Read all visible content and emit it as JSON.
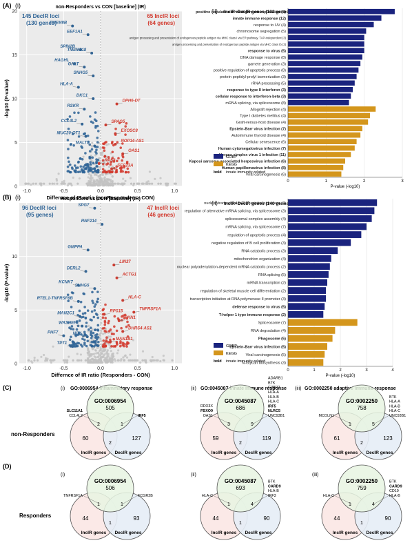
{
  "colors": {
    "down": "#2f6496",
    "up": "#d23a2e",
    "gobp": "#1a237e",
    "kegg": "#d4961c",
    "grey": "#c2c2c2",
    "green": "#e8f5e2",
    "pink": "#fbe7e4",
    "blue": "#e6edf6"
  },
  "panelA": {
    "label": "(A)",
    "volcano": {
      "sub": "(i)",
      "title": "non-Responders vs CON [baseline] (IR)",
      "xlabel": "Differnce of IR ratio (nonResponders - CON)",
      "ylabel": "-log10 (P-value)",
      "left_count": "145 DecIR loci",
      "left_genes": "(130 genes)",
      "right_count": "65 IncIR loci",
      "right_genes": "(64 genes)"
    },
    "bars": {
      "sub": "(ii)",
      "title": "IncIR+DecIR genes (192 genes, non-Responders)",
      "xlabel": "P-value (-log10)",
      "legend": [
        "GOBP",
        "KEGG"
      ],
      "bold_label": "bold",
      "bold_desc": "innate immunity-related"
    }
  },
  "panelB": {
    "label": "(B)",
    "volcano": {
      "sub": "(i)",
      "title": "Responders vs CON [baseline] (IR)",
      "xlabel": "Differnce of IR ratio (Responders - CON)",
      "ylabel": "-log10 (P-value)",
      "left_count": "96 DecIR loci",
      "left_genes": "(95 genes)",
      "right_count": "47 IncIR loci",
      "right_genes": "(46 genes)"
    },
    "bars": {
      "sub": "(ii)",
      "title": "IncIR+DecIR genes (140 genes, Responders)",
      "xlabel": "P-value (-log10)",
      "legend": [
        "GOBP",
        "KEGG"
      ],
      "bold_label": "bold",
      "bold_desc": "innate immunity-related"
    }
  },
  "panelC": {
    "label": "(C)",
    "row": "non-Responders",
    "venns": [
      {
        "sub": "(i)",
        "title": "GO:0006954 inflammatory response",
        "go": "GO:0006954",
        "top": "505",
        "left": "60",
        "right": "127",
        "tl": "2",
        "tr": "1",
        "bottom": "2",
        "center": "",
        "leftGenes": [
          "SLC11A1",
          "CCL4L2"
        ],
        "leftBold": [
          true,
          false
        ],
        "rightGenes": [
          "IRF5"
        ],
        "rightBold": [
          true
        ],
        "lab1": "IncIR genes",
        "lab2": "DecIR genes"
      },
      {
        "sub": "(ii)",
        "title": "GO:0045087 innate immune response",
        "go": "GO:0045087",
        "top": "686",
        "left": "59",
        "right": "119",
        "tl": "3",
        "tr": "9",
        "bottom": "2",
        "center": "",
        "leftGenes": [
          "DDX3X",
          "FBXO9",
          "OAS1"
        ],
        "leftBold": [
          false,
          true,
          false
        ],
        "rightGenes": [
          "ADARB1",
          "BTK",
          "G3BP2",
          "HLA-A",
          "HLA-B",
          "HLA-C",
          "IRF5",
          "NLRC5",
          "UNC93B1"
        ],
        "rightBold": [
          false,
          false,
          false,
          false,
          false,
          false,
          true,
          true,
          false
        ],
        "lab1": "IncIR genes",
        "lab2": "DecIR genes"
      },
      {
        "sub": "(iii)",
        "title": "GO:0002250 adaptive immune response",
        "go": "GO:0002250",
        "top": "758",
        "left": "61",
        "right": "123",
        "tl": "1",
        "tr": "5",
        "bottom": "2",
        "center": "",
        "leftGenes": [
          "MCOLN1"
        ],
        "leftBold": [
          false
        ],
        "rightGenes": [
          "BTK",
          "HLA-A",
          "HLA-B",
          "HLA-C",
          "UNC93B1"
        ],
        "rightBold": [
          false,
          false,
          false,
          false,
          false
        ],
        "lab1": "IncIR genes",
        "lab2": "DecIR genes"
      }
    ]
  },
  "panelD": {
    "label": "(D)",
    "row": "Responders",
    "venns": [
      {
        "sub": "(i)",
        "title": "",
        "go": "GO:0006954",
        "top": "506",
        "left": "44",
        "right": "93",
        "tl": "1",
        "tr": "1",
        "bottom": "1",
        "center": "",
        "leftGenes": [
          "TNFRSF1A"
        ],
        "leftBold": [
          false
        ],
        "rightGenes": [
          "FCGR2B"
        ],
        "rightBold": [
          false
        ],
        "lab1": "IncIR genes",
        "lab2": "DecIR genes"
      },
      {
        "sub": "(ii)",
        "title": "",
        "go": "GO:0045087",
        "top": "693",
        "left": "44",
        "right": "90",
        "tl": "1",
        "tr": "4",
        "bottom": "1",
        "center": "",
        "leftGenes": [
          "HLA-C"
        ],
        "leftBold": [
          false
        ],
        "rightGenes": [
          "BTK",
          "CARD9",
          "HLA-B",
          "IRF3"
        ],
        "rightBold": [
          false,
          true,
          false,
          false
        ],
        "lab1": "IncIR genes",
        "lab2": "DecIR genes"
      },
      {
        "sub": "(iii)",
        "title": "",
        "go": "GO:0002250",
        "top": "759",
        "left": "44",
        "right": "90",
        "tl": "1",
        "tr": "4",
        "bottom": "1",
        "center": "",
        "leftGenes": [
          "HLA-C"
        ],
        "leftBold": [
          false
        ],
        "rightGenes": [
          "BTK",
          "CARD9",
          "CD19",
          "HLA-B"
        ],
        "rightBold": [
          false,
          true,
          false,
          false
        ],
        "lab1": "IncIR genes",
        "lab2": "DecIR genes"
      }
    ]
  },
  "chart_data": [
    {
      "type": "scatter",
      "name": "A(i)",
      "xlim": [
        -1.1,
        1.1
      ],
      "ylim": [
        0,
        20
      ],
      "xticks": [
        "-1.0",
        "-0.5",
        "0.0",
        "0.5",
        "1.0"
      ],
      "yticks": [
        "0",
        "5",
        "10",
        "15",
        "20"
      ],
      "labeled_points": [
        {
          "label": "TMEM8B",
          "x": -0.38,
          "y": 18.3,
          "dir": "down"
        },
        {
          "label": "EEF1A1",
          "x": -0.17,
          "y": 17.3,
          "dir": "down"
        },
        {
          "label": "SPIN2B",
          "x": -0.27,
          "y": 15.6,
          "dir": "down"
        },
        {
          "label": "TMEM218",
          "x": -0.12,
          "y": 15.2,
          "dir": "down"
        },
        {
          "label": "GALT",
          "x": -0.22,
          "y": 13.6,
          "dir": "down"
        },
        {
          "label": "HAGHL",
          "x": -0.35,
          "y": 14.0,
          "dir": "down"
        },
        {
          "label": "SNHG5",
          "x": -0.1,
          "y": 12.6,
          "dir": "down"
        },
        {
          "label": "HLA-A",
          "x": -0.3,
          "y": 11.3,
          "dir": "down"
        },
        {
          "label": "DKC1",
          "x": -0.1,
          "y": 10.0,
          "dir": "down"
        },
        {
          "label": "RSKR",
          "x": -0.22,
          "y": 8.8,
          "dir": "down"
        },
        {
          "label": "CCL4L2",
          "x": -0.25,
          "y": 7.1,
          "dir": "down"
        },
        {
          "label": "MUC20-OT1",
          "x": -0.2,
          "y": 5.7,
          "dir": "down"
        },
        {
          "label": "MALT1",
          "x": -0.08,
          "y": 4.6,
          "dir": "down"
        },
        {
          "label": "DPH6-DT",
          "x": 0.22,
          "y": 9.4,
          "dir": "up"
        },
        {
          "label": "SPAG5",
          "x": 0.07,
          "y": 7.0,
          "dir": "up"
        },
        {
          "label": "EXOSC8",
          "x": 0.2,
          "y": 6.0,
          "dir": "up"
        },
        {
          "label": "NOP14-AS1",
          "x": 0.2,
          "y": 4.8,
          "dir": "up"
        },
        {
          "label": "OAS1",
          "x": 0.3,
          "y": 3.7,
          "dir": "up"
        },
        {
          "label": "RPS8",
          "x": -0.02,
          "y": 2.6,
          "dir": "up"
        },
        {
          "label": "SEC23A",
          "x": 0.15,
          "y": 2.0,
          "dir": "up"
        }
      ]
    },
    {
      "type": "bar",
      "name": "A(ii)",
      "xlim": [
        0,
        3
      ],
      "xticks": [
        "0",
        "1",
        "2",
        "3"
      ],
      "categories": [
        "positive regulation of viral genome replication (4)",
        "innate immune response (12)",
        "response to UV (4)",
        "chromosome segregation (5)",
        "antigen processing and presentation of endogenous peptide antigen via MHC class I via ER pathway, TAP-independent (3)",
        "antigen processing and presentation of endogenous peptide antigen via MHC class Ib (3)",
        "response to virus (5)",
        "DNA damage response (8)",
        "gamete generation (3)",
        "positive regulation of apoptotic process (8)",
        "protein peptidyl-prolyl isomerization (3)",
        "rRNA processing (5)",
        "response to type II interferon (3)",
        "cellular response to interferon-beta (3)",
        "mRNA splicing, via spliceosome (8)",
        "Allograft rejection (4)",
        "Type I diabetes mellitus (4)",
        "Graft-versus-host disease (4)",
        "Epstein-Barr virus infection (7)",
        "Autoimmune thyroid disease (4)",
        "Cellular senescence (6)",
        "Human cytomegalovirus infection (7)",
        "Herpes simplex virus 1 infection (11)",
        "Kaposi sarcoma-associated herpesvirus infection (6)",
        "Human papillomavirus infection (8)",
        "Viral carcinogenesis (6)"
      ],
      "values": [
        2.8,
        2.45,
        2.25,
        2.05,
        2.0,
        2.0,
        2.0,
        1.95,
        1.9,
        1.85,
        1.8,
        1.75,
        1.7,
        1.65,
        1.6,
        2.3,
        2.15,
        2.1,
        1.95,
        1.9,
        1.8,
        1.75,
        1.65,
        1.5,
        1.45,
        1.4
      ],
      "source": [
        "GOBP",
        "GOBP",
        "GOBP",
        "GOBP",
        "GOBP",
        "GOBP",
        "GOBP",
        "GOBP",
        "GOBP",
        "GOBP",
        "GOBP",
        "GOBP",
        "GOBP",
        "GOBP",
        "GOBP",
        "KEGG",
        "KEGG",
        "KEGG",
        "KEGG",
        "KEGG",
        "KEGG",
        "KEGG",
        "KEGG",
        "KEGG",
        "KEGG",
        "KEGG"
      ],
      "bold": [
        true,
        true,
        false,
        false,
        false,
        false,
        true,
        false,
        false,
        false,
        false,
        false,
        true,
        true,
        false,
        false,
        false,
        false,
        true,
        false,
        false,
        true,
        true,
        true,
        true,
        false
      ]
    },
    {
      "type": "scatter",
      "name": "B(i)",
      "xlim": [
        -1.1,
        1.1
      ],
      "ylim": [
        0,
        15
      ],
      "xticks": [
        "-1.0",
        "-0.5",
        "0.0",
        "0.5",
        "1.0"
      ],
      "yticks": [
        "0",
        "5",
        "10"
      ],
      "labeled_points": [
        {
          "label": "SPG7",
          "x": -0.08,
          "y": 14.5,
          "dir": "down"
        },
        {
          "label": "RNF214",
          "x": 0.02,
          "y": 13.0,
          "dir": "down"
        },
        {
          "label": "GMPPA",
          "x": -0.17,
          "y": 10.6,
          "dir": "down"
        },
        {
          "label": "DERL2",
          "x": -0.2,
          "y": 8.6,
          "dir": "down"
        },
        {
          "label": "KCNK7",
          "x": -0.3,
          "y": 7.3,
          "dir": "down"
        },
        {
          "label": "SNHG5",
          "x": -0.08,
          "y": 7.0,
          "dir": "down"
        },
        {
          "label": "RTEL1-TNFRSF6B",
          "x": -0.3,
          "y": 5.8,
          "dir": "down"
        },
        {
          "label": "MAN2C1",
          "x": -0.28,
          "y": 4.4,
          "dir": "down"
        },
        {
          "label": "WASHEP",
          "x": -0.25,
          "y": 3.5,
          "dir": "down"
        },
        {
          "label": "PHF7",
          "x": -0.5,
          "y": 2.6,
          "dir": "down"
        },
        {
          "label": "NIT1",
          "x": -0.18,
          "y": 2.5,
          "dir": "down"
        },
        {
          "label": "TPT1",
          "x": -0.38,
          "y": 1.6,
          "dir": "down"
        },
        {
          "label": "LIN37",
          "x": 0.18,
          "y": 9.2,
          "dir": "up"
        },
        {
          "label": "ACTG1",
          "x": 0.22,
          "y": 8.0,
          "dir": "up"
        },
        {
          "label": "HLA-C",
          "x": 0.3,
          "y": 5.9,
          "dir": "up"
        },
        {
          "label": "RPS15",
          "x": 0.05,
          "y": 4.6,
          "dir": "up"
        },
        {
          "label": "TNFRSF1A",
          "x": 0.45,
          "y": 4.8,
          "dir": "up"
        },
        {
          "label": "PKN1",
          "x": 0.25,
          "y": 4.0,
          "dir": "up"
        },
        {
          "label": "DHRS4-AS1",
          "x": 0.3,
          "y": 3.0,
          "dir": "up"
        },
        {
          "label": "MAN1B1",
          "x": 0.13,
          "y": 2.0,
          "dir": "up"
        }
      ]
    },
    {
      "type": "bar",
      "name": "B(ii)",
      "xlim": [
        0,
        4
      ],
      "xticks": [
        "0",
        "1",
        "2",
        "3",
        "4"
      ],
      "categories": [
        "nuclear-transcribed mRNA catabolic process (4)",
        "regulation of alternative mRNA splicing, via spliceosome (3)",
        "spliceosomal complex assembly (4)",
        "mRNA splicing, via spliceosome (7)",
        "regulation of apoptotic process (4)",
        "negative regulation of B cell proliferation (3)",
        "RNA catabolic process (3)",
        "mitochondrion organization (4)",
        "nuclear polyadenylation-dependent mRNA catabolic process (2)",
        "RNA splicing (5)",
        "mRNA transcription (2)",
        "regulation of skeletal muscle cell differentiation (2)",
        "transcription initiation at RNA polymerase II promoter (3)",
        "defense response to virus (5)",
        "T-helper 1 type immune response (2)",
        "Spliceosome (7)",
        "RNA degradation (4)",
        "Phagosome (5)",
        "Epstein-Barr virus infection (5)",
        "Viral carcinogenesis (5)",
        "N-Glycan biosynthesis (3)"
      ],
      "values": [
        3.4,
        3.3,
        3.2,
        3.0,
        2.8,
        2.4,
        1.9,
        1.65,
        1.6,
        1.55,
        1.5,
        1.45,
        1.45,
        1.4,
        1.35,
        2.65,
        1.8,
        1.7,
        1.5,
        1.4,
        1.35
      ],
      "source": [
        "GOBP",
        "GOBP",
        "GOBP",
        "GOBP",
        "GOBP",
        "GOBP",
        "GOBP",
        "GOBP",
        "GOBP",
        "GOBP",
        "GOBP",
        "GOBP",
        "GOBP",
        "GOBP",
        "GOBP",
        "KEGG",
        "KEGG",
        "KEGG",
        "KEGG",
        "KEGG",
        "KEGG"
      ],
      "bold": [
        false,
        false,
        false,
        false,
        false,
        false,
        false,
        false,
        false,
        false,
        false,
        false,
        false,
        true,
        true,
        false,
        false,
        true,
        true,
        false,
        false
      ]
    }
  ]
}
